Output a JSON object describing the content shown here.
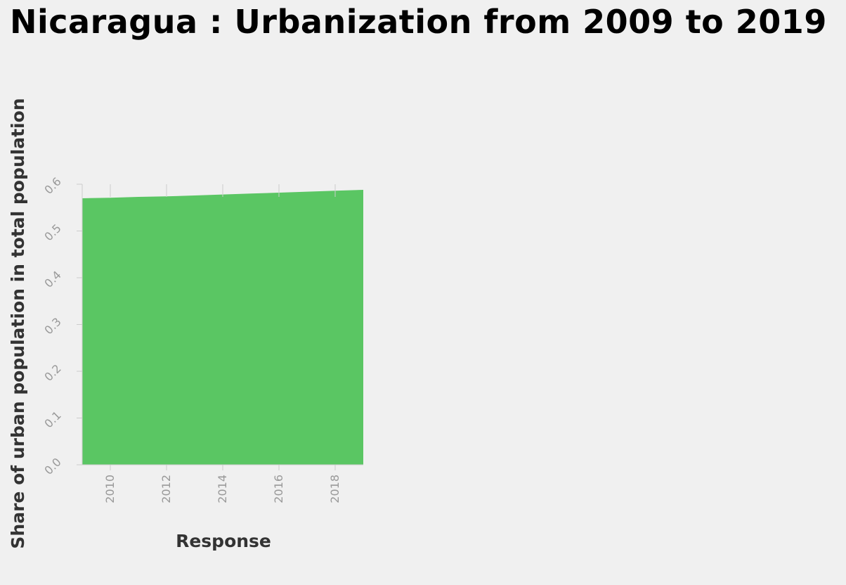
{
  "chart_data": {
    "type": "area",
    "title": "Nicaragua : Urbanization from 2009 to 2019",
    "xlabel": "Response",
    "ylabel": "Share of urban population in total population",
    "x": [
      2009,
      2010,
      2011,
      2012,
      2013,
      2014,
      2015,
      2016,
      2017,
      2018,
      2019
    ],
    "series": [
      {
        "values": [
          0.57,
          0.571,
          0.573,
          0.574,
          0.576,
          0.578,
          0.58,
          0.582,
          0.584,
          0.586,
          0.588
        ]
      }
    ],
    "xlim": [
      2009,
      2019
    ],
    "ylim": [
      0,
      0.6
    ],
    "x_ticks": [
      "2010",
      "2012",
      "2014",
      "2016",
      "2018"
    ],
    "x_tick_values": [
      2010,
      2012,
      2014,
      2016,
      2018
    ],
    "y_ticks": [
      "0.0",
      "0.1",
      "0.2",
      "0.3",
      "0.4",
      "0.5",
      "0.6"
    ],
    "y_tick_values": [
      0,
      0.1,
      0.2,
      0.3,
      0.4,
      0.5,
      0.6
    ],
    "grid": false,
    "fill_color": "#5ac663",
    "axis_color": "#cccccc"
  }
}
